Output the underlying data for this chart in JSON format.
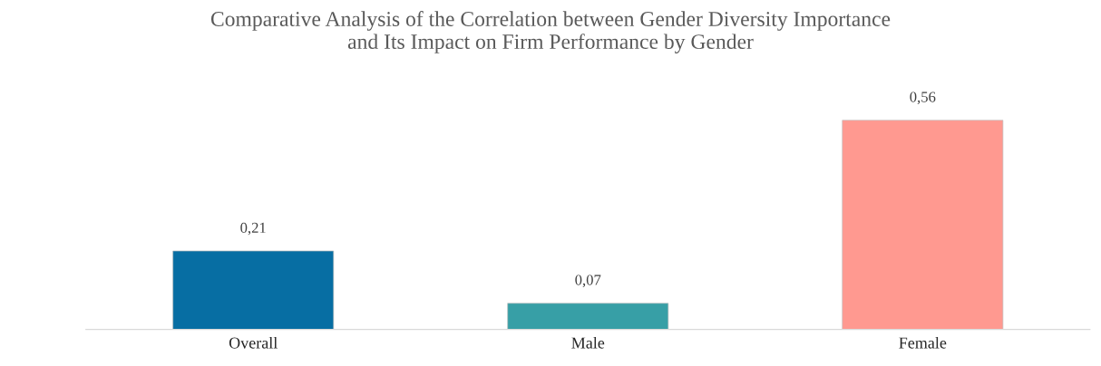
{
  "chart_data": {
    "type": "bar",
    "title": "Comparative Analysis of the Correlation between Gender Diversity Importance\nand Its Impact on Firm Performance by Gender",
    "categories": [
      "Overall",
      "Male",
      "Female"
    ],
    "values": [
      0.21,
      0.07,
      0.56
    ],
    "colors": [
      "#076ea3",
      "#379fa6",
      "#ff9990"
    ],
    "value_labels": [
      "0,21",
      "0,07",
      "0,56"
    ],
    "grid": false,
    "legend": false
  }
}
